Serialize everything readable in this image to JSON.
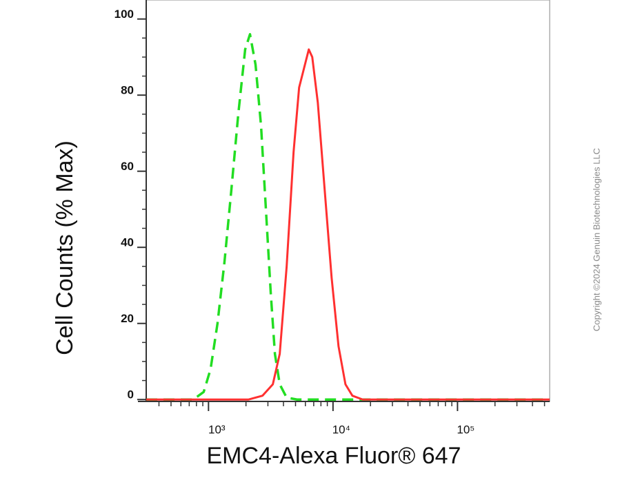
{
  "chart_data": {
    "type": "line",
    "y_label": "Cell Counts (% Max)",
    "x_label": "EMC4-Alexa Fluor® 647",
    "credit": "Copyright ©2024 Genuin Biotechnologies LLC",
    "x_scale": "log",
    "xlim": [
      316,
      550000
    ],
    "ylim": [
      -0.5,
      105
    ],
    "xticks": [
      {
        "value": 1000,
        "label": "10³"
      },
      {
        "value": 10000,
        "label": "10⁴"
      },
      {
        "value": 100000,
        "label": "10⁵"
      }
    ],
    "xminorticks": [
      400,
      500,
      600,
      700,
      800,
      900,
      2000,
      3000,
      4000,
      5000,
      6000,
      7000,
      8000,
      9000,
      20000,
      30000,
      40000,
      50000,
      60000,
      70000,
      80000,
      90000,
      200000,
      300000,
      400000,
      500000
    ],
    "yticks": [
      0,
      20,
      40,
      60,
      80,
      100
    ],
    "yminorticks": [
      5,
      10,
      15,
      25,
      30,
      35,
      45,
      50,
      55,
      65,
      70,
      75,
      85,
      90,
      95
    ],
    "series": [
      {
        "color": "#22dd22",
        "dashed": true,
        "x": [
          316,
          755,
          915,
          1039,
          1181,
          1342,
          1525,
          1734,
          1970,
          2154,
          2387,
          2642,
          2891,
          3162,
          3415,
          3734,
          4244,
          5142,
          550000
        ],
        "values": [
          0,
          0,
          2,
          8,
          20,
          36,
          55,
          75,
          92,
          96,
          88,
          72,
          50,
          28,
          12,
          4,
          0.5,
          0,
          0
        ]
      },
      {
        "color": "#ff3030",
        "dashed": false,
        "x": [
          316,
          2100,
          2712,
          3286,
          3734,
          4244,
          4822,
          5343,
          5843,
          6390,
          6813,
          7552,
          8577,
          9748,
          11075,
          12589,
          14310,
          17330,
          550000
        ],
        "values": [
          0,
          0,
          1,
          4,
          12,
          35,
          65,
          82,
          87,
          92,
          90,
          78,
          55,
          32,
          14,
          4,
          1,
          0,
          0
        ]
      }
    ]
  }
}
